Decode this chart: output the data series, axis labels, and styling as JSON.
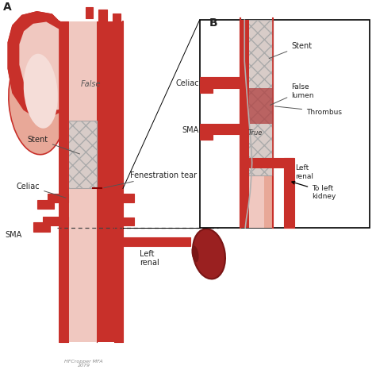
{
  "bg_color": "#ffffff",
  "aorta_red": "#c8302a",
  "aorta_light": "#e8a898",
  "false_lumen_pink": "#f0c8c0",
  "stent_fill": "#d8ccc8",
  "stent_edge": "#a89898",
  "kidney_dark": "#7a1515",
  "kidney_mid": "#9a2020",
  "label_color": "#222222",
  "dashed_color": "#444444",
  "wire_color": "#b0b0b0",
  "thrombus_color": "#b04040",
  "panel_A": "A",
  "panel_B": "B",
  "false_label": "False",
  "stent_label": "Stent",
  "celiac_label": "Celiac",
  "sma_label": "SMA",
  "left_renal_label": "Left\nrenal",
  "fen_label": "Fenestration tear",
  "true_label": "True",
  "false_lumen_label": "False\nlumen",
  "thrombus_label": "Thrombus",
  "to_kidney_label": "To left\nkidney",
  "stent_b_label": "Stent",
  "celiac_b_label": "Celiac",
  "sma_b_label": "SMA",
  "left_renal_b_label": "Left\nrenal"
}
